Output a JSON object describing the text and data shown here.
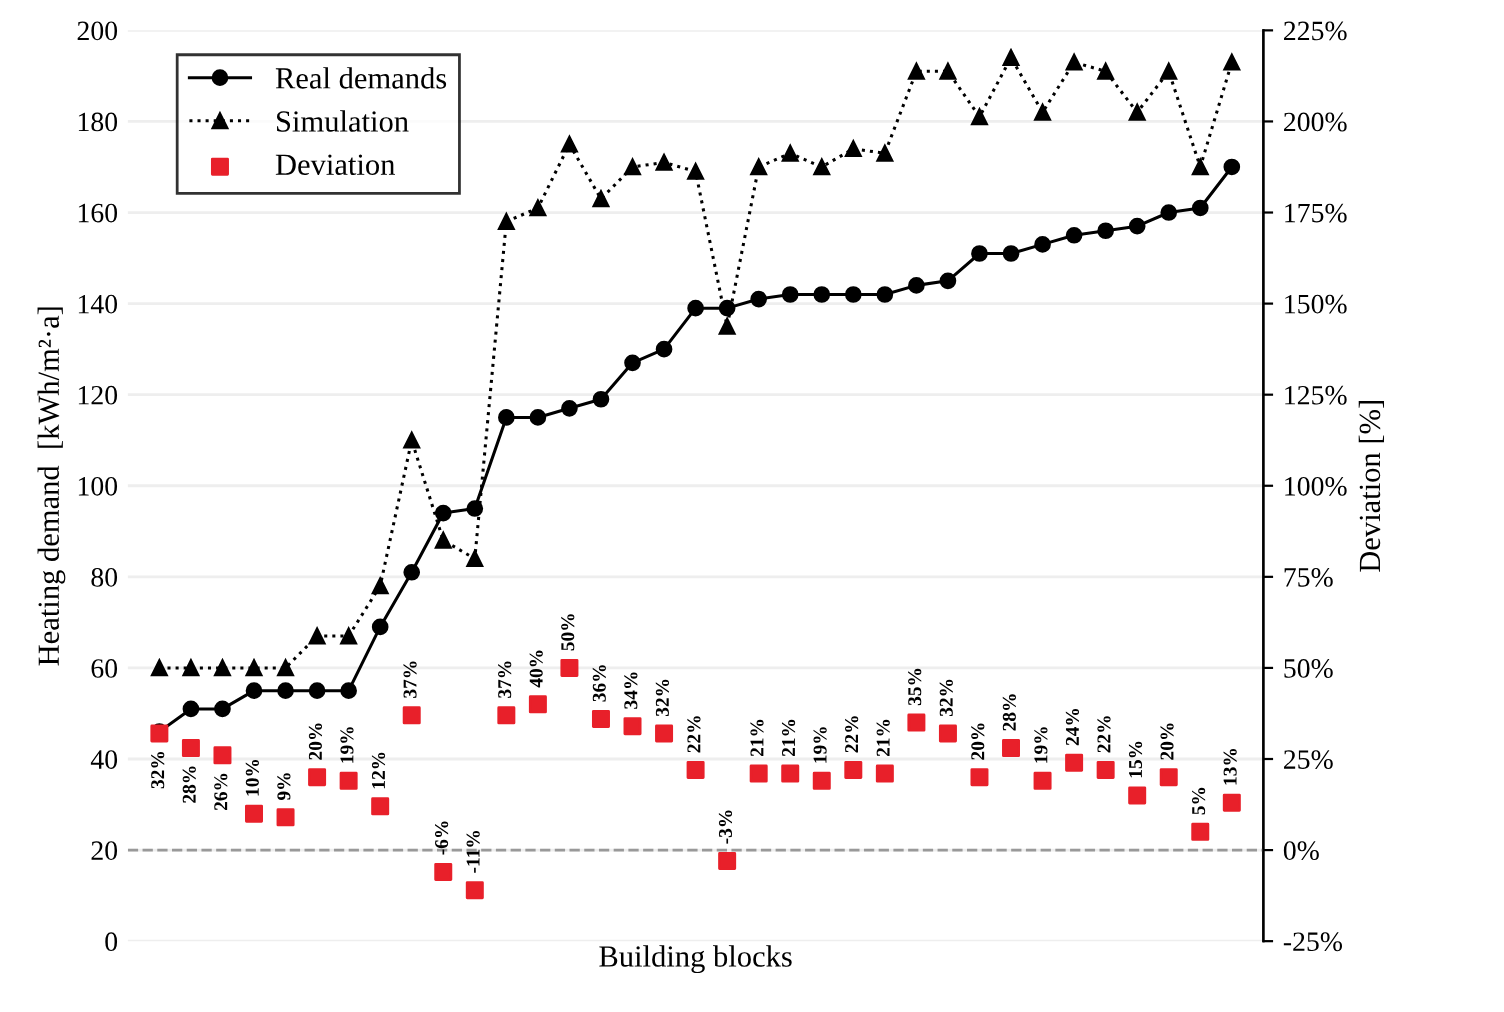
{
  "chart_data": {
    "type": "line",
    "xlabel": "Building blocks",
    "ylabel": "Heating demand  [kWh/m²·a]",
    "y2label": "Deviation [%]",
    "categories": [
      null,
      null,
      null,
      null,
      null,
      null,
      null,
      null,
      null,
      null,
      null,
      null,
      null,
      null,
      null,
      null,
      null,
      null,
      null,
      null,
      null,
      null,
      null,
      null,
      null,
      null,
      null,
      null,
      null,
      null,
      null,
      null,
      null,
      null,
      null
    ],
    "series": [
      {
        "name": "Real demands",
        "color": "#000000",
        "marker": "circle",
        "line_style": "solid",
        "values": [
          46,
          51,
          51,
          55,
          55,
          55,
          55,
          69,
          81,
          94,
          95,
          115,
          115,
          117,
          119,
          127,
          130,
          139,
          139,
          141,
          142,
          142,
          142,
          142,
          144,
          145,
          151,
          151,
          153,
          155,
          156,
          157,
          160,
          161,
          170
        ]
      },
      {
        "name": "Simulation",
        "color": "#000000",
        "marker": "triangle",
        "line_style": "dotted",
        "values": [
          60,
          60,
          60,
          60,
          60,
          67,
          67,
          78,
          110,
          88,
          84,
          158,
          161,
          175,
          163,
          170,
          171,
          169,
          135,
          170,
          173,
          170,
          174,
          173,
          191,
          191,
          181,
          194,
          182,
          193,
          191,
          182,
          191,
          170,
          193
        ]
      },
      {
        "name": "Deviation",
        "type": "scatter",
        "axis": "y2",
        "color": "#e8202a",
        "marker": "square",
        "values": [
          32,
          28,
          26,
          10,
          9,
          20,
          19,
          12,
          37,
          -6,
          -11,
          37,
          40,
          50,
          36,
          34,
          32,
          22,
          -3,
          21,
          21,
          19,
          22,
          21,
          35,
          32,
          20,
          28,
          19,
          24,
          22,
          15,
          20,
          5,
          13
        ],
        "value_labels": [
          "32%",
          "28%",
          "26%",
          "10%",
          "9%",
          "20%",
          "19%",
          "12%",
          "37%",
          "-6%",
          "-11%",
          "37%",
          "40%",
          "50%",
          "36%",
          "34%",
          "32%",
          "22%",
          "-3%",
          "21%",
          "21%",
          "19%",
          "22%",
          "21%",
          "35%",
          "32%",
          "20%",
          "28%",
          "19%",
          "24%",
          "22%",
          "15%",
          "20%",
          "5%",
          "13%"
        ]
      }
    ],
    "ylim": [
      0,
      200
    ],
    "yticks": [
      0,
      20,
      40,
      60,
      80,
      100,
      120,
      140,
      160,
      180,
      200
    ],
    "y2lim": [
      -25,
      225
    ],
    "y2ticks": [
      {
        "value": -25,
        "label": "-25%"
      },
      {
        "value": 0,
        "label": "0%"
      },
      {
        "value": 25,
        "label": "25%"
      },
      {
        "value": 50,
        "label": "50%"
      },
      {
        "value": 75,
        "label": "75%"
      },
      {
        "value": 100,
        "label": "100%"
      },
      {
        "value": 125,
        "label": "125%"
      },
      {
        "value": 150,
        "label": "150%"
      },
      {
        "value": 175,
        "label": "175%"
      },
      {
        "value": 200,
        "label": "200%"
      },
      {
        "value": 225,
        "label": "225%"
      }
    ],
    "ref_lines": [
      {
        "axis": "y2",
        "value": 0,
        "color": "#999999",
        "line_style": "dashed"
      }
    ],
    "grid": "y",
    "legend": "top left"
  }
}
